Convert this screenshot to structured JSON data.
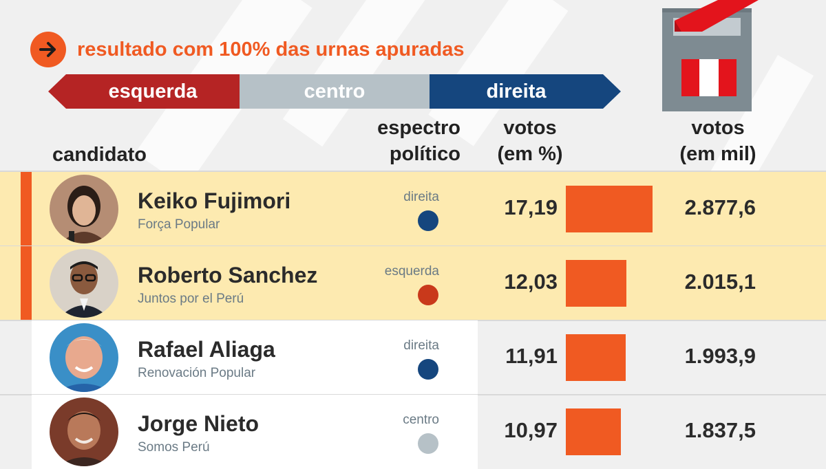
{
  "headline": {
    "text": "resultado com 100% das urnas apuradas"
  },
  "spectrum": {
    "left_label": "esquerda",
    "center_label": "centro",
    "right_label": "direita",
    "colors": {
      "left": "#b52424",
      "center": "#b6c1c7",
      "right": "#15467e"
    }
  },
  "columns": {
    "candidate": "candidato",
    "spectrum_line1": "espectro",
    "spectrum_line2": "político",
    "pct_line1": "votos",
    "pct_line2": "(em %)",
    "votes_line1": "votos",
    "votes_line2": "(em mil)"
  },
  "colors": {
    "accent": "#f05a22",
    "highlight": "#fdeab0",
    "dot_right": "#15467e",
    "dot_left": "#c9391b",
    "dot_center": "#b6c1c7"
  },
  "chart_data": {
    "type": "bar",
    "categories": [
      "Keiko Fujimori",
      "Roberto Sanchez",
      "Rafael Aliaga",
      "Jorge Nieto"
    ],
    "series": [
      {
        "name": "votos (em %)",
        "values": [
          17.19,
          12.03,
          11.91,
          10.97
        ]
      },
      {
        "name": "votos (em mil)",
        "values": [
          2877.6,
          2015.1,
          1993.9,
          1837.5
        ]
      }
    ]
  },
  "candidates": [
    {
      "name": "Keiko Fujimori",
      "party": "Força Popular",
      "spectrum": "direita",
      "spectrum_key": "right",
      "pct": 17.19,
      "pct_text": "17,19",
      "votes_text": "2.877,6",
      "highlight": true,
      "avatar_icon": "portrait-woman-icon"
    },
    {
      "name": "Roberto Sanchez",
      "party": "Juntos por el Perú",
      "spectrum": "esquerda",
      "spectrum_key": "left",
      "pct": 12.03,
      "pct_text": "12,03",
      "votes_text": "2.015,1",
      "highlight": true,
      "avatar_icon": "portrait-man-glasses-icon"
    },
    {
      "name": "Rafael Aliaga",
      "party": "Renovación Popular",
      "spectrum": "direita",
      "spectrum_key": "right",
      "pct": 11.91,
      "pct_text": "11,91",
      "votes_text": "1.993,9",
      "highlight": false,
      "avatar_icon": "portrait-man-icon"
    },
    {
      "name": "Jorge Nieto",
      "party": "Somos Perú",
      "spectrum": "centro",
      "spectrum_key": "center",
      "pct": 10.97,
      "pct_text": "10,97",
      "votes_text": "1.837,5",
      "highlight": false,
      "avatar_icon": "portrait-man-icon"
    }
  ]
}
